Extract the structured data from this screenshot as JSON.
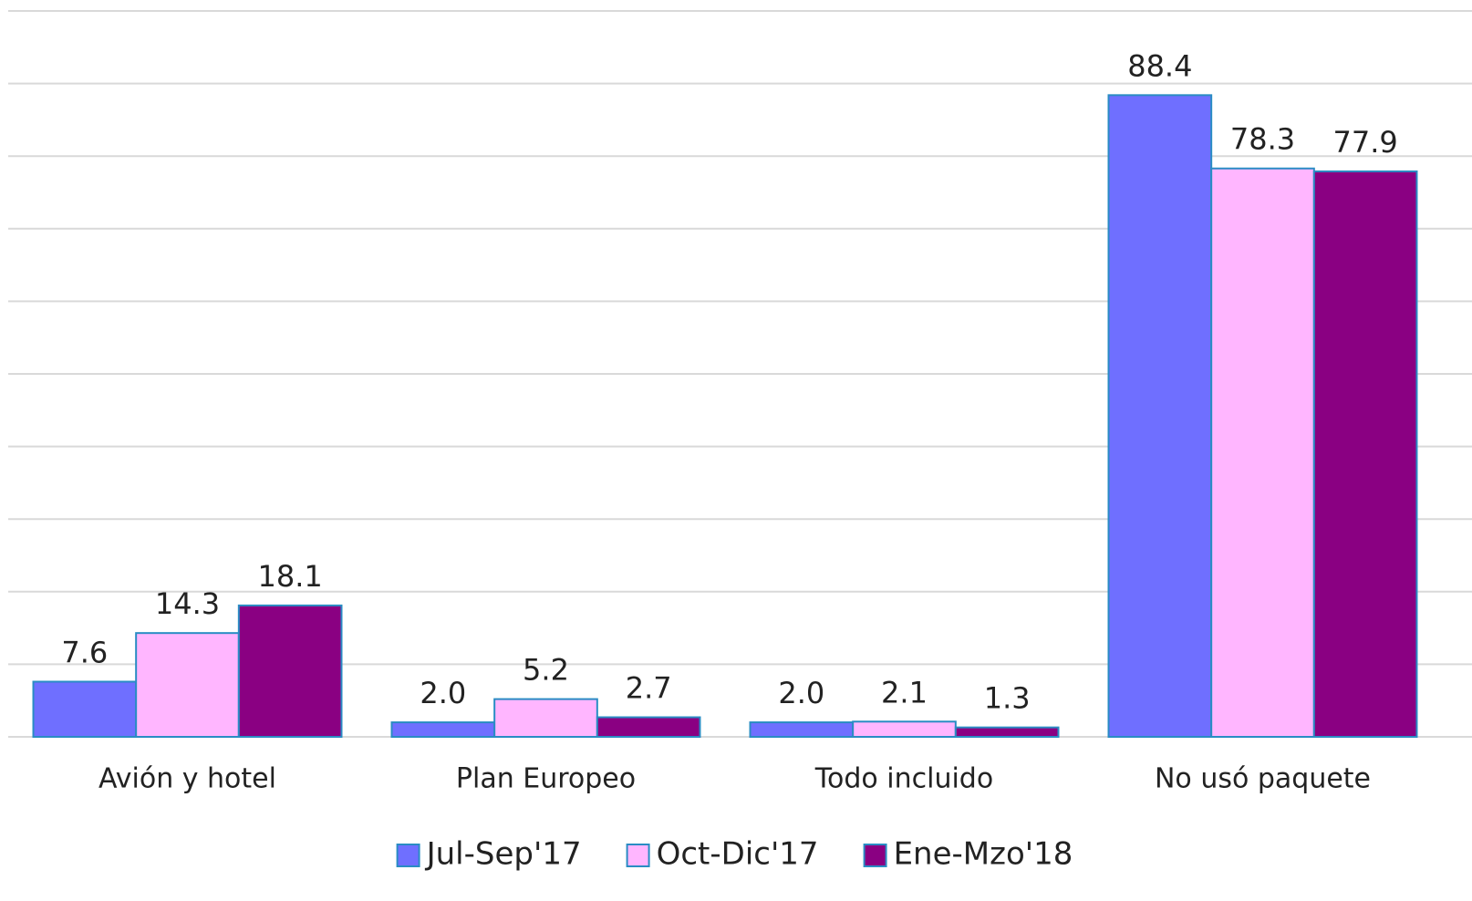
{
  "chart_data": {
    "type": "bar",
    "categories": [
      "Avión y hotel",
      "Plan Europeo",
      "Todo incluido",
      "No usó paquete"
    ],
    "series": [
      {
        "name": "Jul-Sep'17",
        "color": "#6f6fff",
        "values": [
          7.6,
          2.0,
          2.0,
          88.4
        ],
        "value_labels": [
          "7.6",
          "2.0",
          "2.0",
          "88.4"
        ]
      },
      {
        "name": "Oct-Dic'17",
        "color": "#ffb6ff",
        "values": [
          14.3,
          5.2,
          2.1,
          78.3
        ],
        "value_labels": [
          "14.3",
          "5.2",
          "2.1",
          "78.3"
        ]
      },
      {
        "name": "Ene-Mzo'18",
        "color": "#8a0082",
        "values": [
          18.1,
          2.7,
          1.3,
          77.9
        ],
        "value_labels": [
          "18.1",
          "2.7",
          "1.3",
          "77.9"
        ]
      }
    ],
    "ylim": [
      0,
      100
    ],
    "yticks": [
      0,
      10,
      20,
      30,
      40,
      50,
      60,
      70,
      80,
      90,
      100
    ],
    "grid": true,
    "legend": "bottom"
  }
}
